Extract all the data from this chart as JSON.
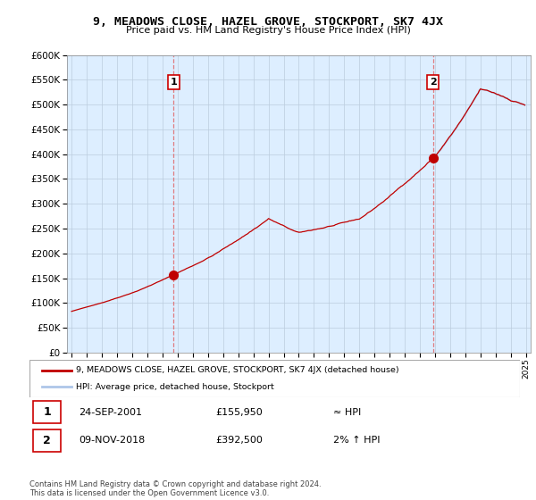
{
  "title": "9, MEADOWS CLOSE, HAZEL GROVE, STOCKPORT, SK7 4JX",
  "subtitle": "Price paid vs. HM Land Registry's House Price Index (HPI)",
  "legend_line1": "9, MEADOWS CLOSE, HAZEL GROVE, STOCKPORT, SK7 4JX (detached house)",
  "legend_line2": "HPI: Average price, detached house, Stockport",
  "annotation1_label": "1",
  "annotation1_date": "24-SEP-2001",
  "annotation1_price": "£155,950",
  "annotation1_hpi": "≈ HPI",
  "annotation2_label": "2",
  "annotation2_date": "09-NOV-2018",
  "annotation2_price": "£392,500",
  "annotation2_hpi": "2% ↑ HPI",
  "footer": "Contains HM Land Registry data © Crown copyright and database right 2024.\nThis data is licensed under the Open Government Licence v3.0.",
  "ylim": [
    0,
    600000
  ],
  "yticks": [
    0,
    50000,
    100000,
    150000,
    200000,
    250000,
    300000,
    350000,
    400000,
    450000,
    500000,
    550000,
    600000
  ],
  "hpi_color": "#aec6e8",
  "price_color": "#c00000",
  "dashed_color": "#e06060",
  "plot_bg_color": "#ddeeff",
  "background_color": "#ffffff",
  "grid_color": "#bbccdd",
  "sale_year1": 2001.73,
  "sale_price1": 155950,
  "sale_year2": 2018.86,
  "sale_price2": 392500,
  "hpi_start_year": 2019.0,
  "xlim_left": 1994.7,
  "xlim_right": 2025.3
}
